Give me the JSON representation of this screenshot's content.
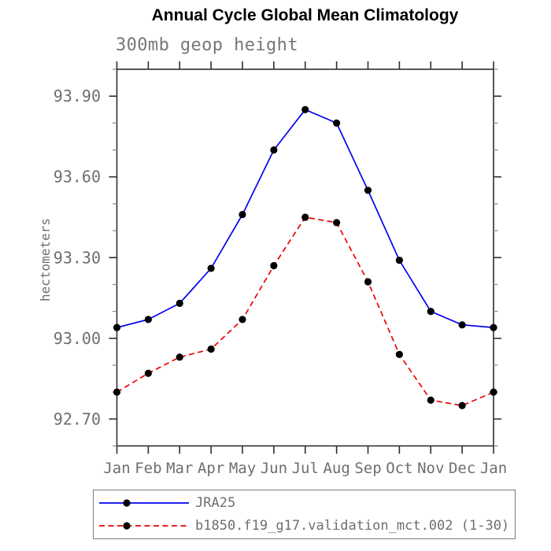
{
  "chart_data": {
    "type": "line",
    "title": "Annual Cycle Global Mean Climatology",
    "subtitle": "300mb geop height",
    "ylabel": "hectometers",
    "xlabel": "",
    "x_labels": [
      "Jan",
      "Feb",
      "Mar",
      "Apr",
      "May",
      "Jun",
      "Jul",
      "Aug",
      "Sep",
      "Oct",
      "Nov",
      "Dec",
      "Jan"
    ],
    "ylim": [
      92.6,
      94.0
    ],
    "ytick_major_values": [
      92.7,
      93.0,
      93.3,
      93.6,
      93.9
    ],
    "ytick_major_labels": [
      "92.70",
      "93.00",
      "93.30",
      "93.60",
      "93.90"
    ],
    "ytick_minor_step": 0.1,
    "grid": false,
    "legend_position": "bottom",
    "series": [
      {
        "name": "JRA25",
        "color": "#0000ee",
        "line_style": "solid",
        "marker": "circle",
        "marker_color": "#000000",
        "values": [
          93.04,
          93.07,
          93.13,
          93.26,
          93.46,
          93.7,
          93.85,
          93.8,
          93.55,
          93.29,
          93.1,
          93.05,
          93.04
        ]
      },
      {
        "name": "b1850.f19_g17.validation_mct.002 (1-30)",
        "color": "#ee0000",
        "line_style": "dashed",
        "marker": "circle",
        "marker_color": "#000000",
        "values": [
          92.8,
          92.87,
          92.93,
          92.96,
          93.07,
          93.27,
          93.45,
          93.43,
          93.21,
          92.94,
          92.77,
          92.75,
          92.8
        ]
      }
    ],
    "text_color": "#6e6e6e",
    "axis_color": "#2f2f2f"
  }
}
